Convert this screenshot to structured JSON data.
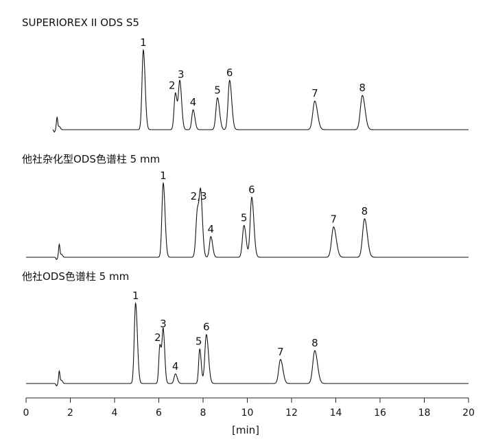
{
  "chart_data": {
    "type": "line",
    "xlabel": "[min]",
    "xlim": [
      0,
      20
    ],
    "xticks": [
      "0",
      "2",
      "4",
      "6",
      "8",
      "10",
      "12",
      "14",
      "16",
      "18",
      "20"
    ],
    "panels": [
      {
        "title": "SUPERIOREX II ODS S5",
        "t_min": 1.2,
        "t_max": 20,
        "solvent_peak": {
          "t": 1.4,
          "h": 0.15
        },
        "peaks": [
          {
            "label": "1",
            "t": 5.3,
            "h": 1.0,
            "w": 0.06
          },
          {
            "label": "2",
            "t": 6.75,
            "h": 0.46,
            "w": 0.06
          },
          {
            "label": "3",
            "t": 6.95,
            "h": 0.6,
            "w": 0.06
          },
          {
            "label": "4",
            "t": 7.55,
            "h": 0.25,
            "w": 0.06
          },
          {
            "label": "5",
            "t": 8.65,
            "h": 0.4,
            "w": 0.07
          },
          {
            "label": "6",
            "t": 9.2,
            "h": 0.62,
            "w": 0.07
          },
          {
            "label": "7",
            "t": 13.05,
            "h": 0.36,
            "w": 0.09
          },
          {
            "label": "8",
            "t": 15.2,
            "h": 0.43,
            "w": 0.09
          }
        ],
        "annotations": [
          {
            "text": "1",
            "t": 5.3,
            "h": 1.0
          },
          {
            "text": "2",
            "t": 6.6,
            "h": 0.46
          },
          {
            "text": "3",
            "t": 7.0,
            "h": 0.6
          },
          {
            "text": "4",
            "t": 7.55,
            "h": 0.25
          },
          {
            "text": "5",
            "t": 8.65,
            "h": 0.4
          },
          {
            "text": "6",
            "t": 9.2,
            "h": 0.62
          },
          {
            "text": "7",
            "t": 13.05,
            "h": 0.36
          },
          {
            "text": "8",
            "t": 15.2,
            "h": 0.43
          }
        ]
      },
      {
        "title": "他社杂化型ODS色谱柱 5 mm",
        "t_min": 0.0,
        "t_max": 20,
        "solvent_peak": {
          "t": 1.5,
          "h": 0.17
        },
        "peaks": [
          {
            "label": "1",
            "t": 6.2,
            "h": 1.0,
            "w": 0.06
          },
          {
            "label": "2",
            "t": 7.75,
            "h": 0.65,
            "w": 0.07
          },
          {
            "label": "3",
            "t": 7.9,
            "h": 0.72,
            "w": 0.06
          },
          {
            "label": "4",
            "t": 8.35,
            "h": 0.28,
            "w": 0.06
          },
          {
            "label": "5",
            "t": 9.85,
            "h": 0.43,
            "w": 0.07
          },
          {
            "label": "6",
            "t": 10.2,
            "h": 0.81,
            "w": 0.07
          },
          {
            "label": "7",
            "t": 13.9,
            "h": 0.41,
            "w": 0.09
          },
          {
            "label": "8",
            "t": 15.3,
            "h": 0.52,
            "w": 0.09
          }
        ],
        "annotations": [
          {
            "text": "1",
            "t": 6.2,
            "h": 1.0
          },
          {
            "text": "2,3",
            "t": 7.8,
            "h": 0.72
          },
          {
            "text": "4",
            "t": 8.35,
            "h": 0.28
          },
          {
            "text": "5",
            "t": 9.85,
            "h": 0.43
          },
          {
            "text": "6",
            "t": 10.2,
            "h": 0.81
          },
          {
            "text": "7",
            "t": 13.9,
            "h": 0.41
          },
          {
            "text": "8",
            "t": 15.3,
            "h": 0.52
          }
        ]
      },
      {
        "title": "他社ODS色谱柱 5 mm",
        "t_min": 0.0,
        "t_max": 20,
        "solvent_peak": {
          "t": 1.5,
          "h": 0.15
        },
        "peaks": [
          {
            "label": "1",
            "t": 4.95,
            "h": 1.0,
            "w": 0.06
          },
          {
            "label": "2",
            "t": 6.05,
            "h": 0.48,
            "w": 0.05
          },
          {
            "label": "3",
            "t": 6.2,
            "h": 0.65,
            "w": 0.05
          },
          {
            "label": "4",
            "t": 6.75,
            "h": 0.12,
            "w": 0.06
          },
          {
            "label": "5",
            "t": 7.85,
            "h": 0.43,
            "w": 0.05
          },
          {
            "label": "6",
            "t": 8.15,
            "h": 0.61,
            "w": 0.07
          },
          {
            "label": "7",
            "t": 11.5,
            "h": 0.3,
            "w": 0.08
          },
          {
            "label": "8",
            "t": 13.05,
            "h": 0.41,
            "w": 0.09
          }
        ],
        "annotations": [
          {
            "text": "1",
            "t": 4.95,
            "h": 1.0
          },
          {
            "text": "2",
            "t": 5.95,
            "h": 0.48
          },
          {
            "text": "3",
            "t": 6.2,
            "h": 0.65
          },
          {
            "text": "4",
            "t": 6.75,
            "h": 0.12
          },
          {
            "text": "5",
            "t": 7.8,
            "h": 0.43
          },
          {
            "text": "6",
            "t": 8.15,
            "h": 0.61
          },
          {
            "text": "7",
            "t": 11.5,
            "h": 0.3
          },
          {
            "text": "8",
            "t": 13.05,
            "h": 0.41
          }
        ]
      }
    ]
  }
}
